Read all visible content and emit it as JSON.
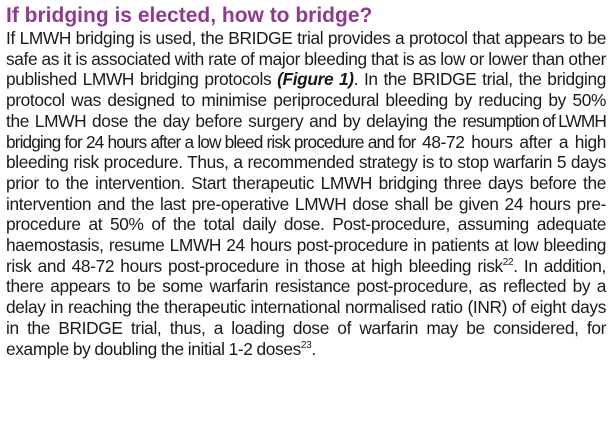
{
  "section": {
    "heading": "If bridging is elected, how to bridge?"
  },
  "paragraph": {
    "part1": "If LMWH bridging is used, the BRIDGE trial provides a protocol that appears to be safe as it is associated with rate of major bleeding that is as low or lower than other published LMWH bridging protocols ",
    "figure_ref": "(Figure 1)",
    "part2": ". In the BRIDGE trial, the bridging protocol was designed to minimise periprocedural bleeding by reducing by 50% the LMWH dose the day before surgery and by delaying the ",
    "part3": "resumption of LWMH bridging for 24 hours after a low bleed risk procedure and for",
    "part4": " 48-72 hours after a high bleeding risk procedure. Thus, a recommended strategy is to stop warfarin 5 days prior to the intervention. Start therapeutic LMWH bridging three days before the intervention and the last pre-operative LMWH dose shall be given 24 hours pre-procedure at 50% of the total daily dose. Post-procedure, assuming adequate haemostasis, resume LMWH 24 hours post-procedure in patients at low bleeding risk and 48-72 hours post-procedure in those at high bleeding risk",
    "ref1": "22",
    "part5": ". In addition, there appears to be some warfarin resistance post-procedure, as reflected by a delay in reaching the therapeutic international normalised ratio (INR) of eight days in the BRIDGE trial, thus, a loading dose of warfarin may be considered, for example by doubling the initial 1-2 doses",
    "ref2": "23",
    "part6": "."
  }
}
